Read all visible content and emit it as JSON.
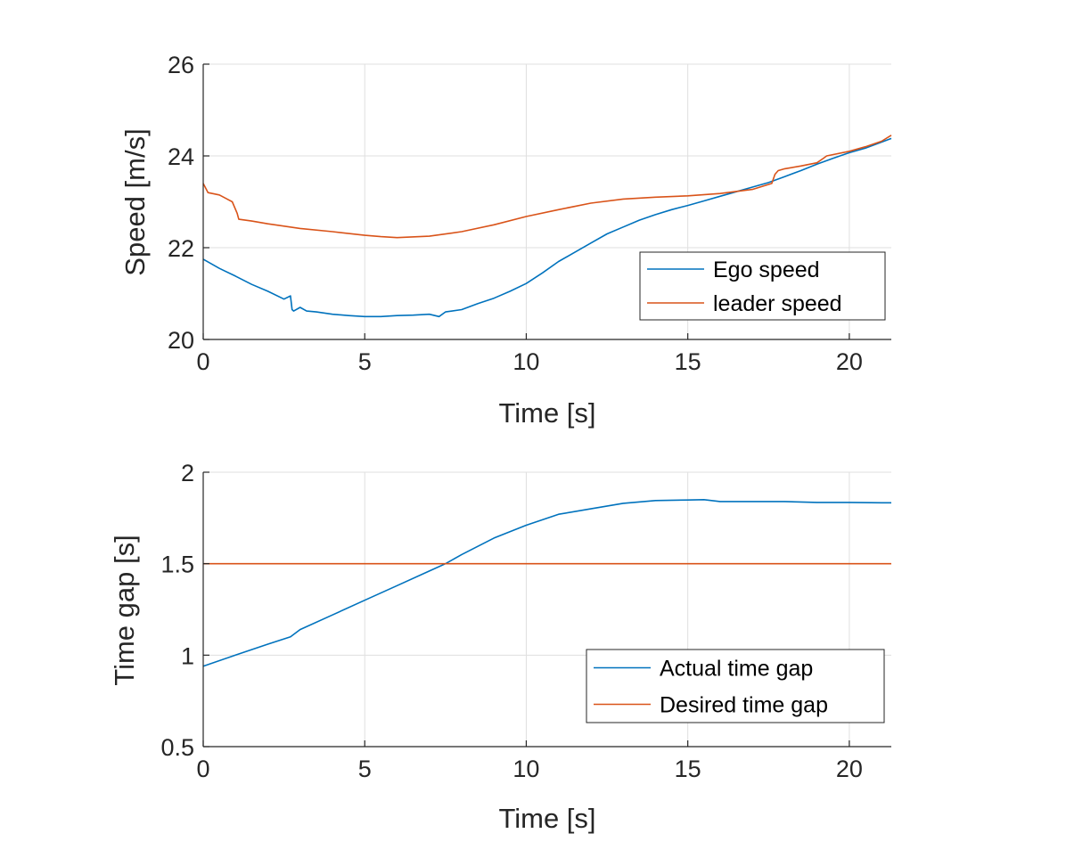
{
  "chart_data": [
    {
      "type": "line",
      "xlabel": "Time [s]",
      "ylabel": "Speed [m/s]",
      "xlim": [
        0,
        21.3
      ],
      "ylim": [
        20,
        26
      ],
      "xticks": [
        0,
        5,
        10,
        15,
        20
      ],
      "yticks": [
        20,
        22,
        24,
        26
      ],
      "grid": true,
      "legend": "bottom-right",
      "series": [
        {
          "name": "Ego speed",
          "color": "#0072BD",
          "x": [
            0,
            0.5,
            1,
            1.5,
            2,
            2.5,
            2.7,
            2.75,
            2.8,
            3.0,
            3.2,
            3.5,
            4,
            4.5,
            5,
            5.5,
            6,
            6.5,
            7,
            7.3,
            7.5,
            8,
            8.5,
            9,
            9.5,
            10,
            10.5,
            11,
            11.5,
            12,
            12.5,
            13,
            13.5,
            14,
            14.5,
            15,
            15.5,
            16,
            16.5,
            17,
            17.5,
            18,
            18.5,
            19,
            19.5,
            20,
            20.5,
            21,
            21.3
          ],
          "y": [
            21.75,
            21.55,
            21.38,
            21.2,
            21.05,
            20.88,
            20.95,
            20.65,
            20.62,
            20.7,
            20.62,
            20.6,
            20.55,
            20.52,
            20.5,
            20.5,
            20.52,
            20.53,
            20.55,
            20.5,
            20.6,
            20.65,
            20.78,
            20.9,
            21.05,
            21.22,
            21.45,
            21.7,
            21.9,
            22.1,
            22.3,
            22.45,
            22.6,
            22.72,
            22.83,
            22.92,
            23.02,
            23.12,
            23.22,
            23.32,
            23.42,
            23.55,
            23.68,
            23.82,
            23.95,
            24.07,
            24.17,
            24.3,
            24.38
          ]
        },
        {
          "name": "leader speed",
          "color": "#D95319",
          "x": [
            0,
            0.15,
            0.5,
            0.9,
            1.05,
            1.1,
            1.5,
            2,
            3,
            4,
            5,
            5.5,
            6,
            7,
            8,
            9,
            10,
            11,
            12,
            13,
            14,
            15,
            16,
            17,
            17.6,
            17.7,
            17.8,
            18,
            18.5,
            19,
            19.2,
            19.3,
            19.5,
            20,
            20.5,
            21,
            21.3
          ],
          "y": [
            23.4,
            23.2,
            23.15,
            23.0,
            22.75,
            22.62,
            22.58,
            22.52,
            22.42,
            22.35,
            22.27,
            22.24,
            22.22,
            22.25,
            22.35,
            22.5,
            22.68,
            22.83,
            22.97,
            23.06,
            23.1,
            23.13,
            23.18,
            23.27,
            23.4,
            23.6,
            23.68,
            23.72,
            23.78,
            23.85,
            23.95,
            24.0,
            24.03,
            24.1,
            24.2,
            24.32,
            24.45
          ]
        }
      ]
    },
    {
      "type": "line",
      "xlabel": "Time [s]",
      "ylabel": "Time gap [s]",
      "xlim": [
        0,
        21.3
      ],
      "ylim": [
        0.5,
        2
      ],
      "xticks": [
        0,
        5,
        10,
        15,
        20
      ],
      "yticks": [
        0.5,
        1,
        1.5,
        2
      ],
      "grid": true,
      "legend": "bottom-right",
      "series": [
        {
          "name": "Actual time gap",
          "color": "#0072BD",
          "x": [
            0,
            1,
            2,
            2.7,
            3,
            4,
            5,
            6,
            7,
            7.5,
            8,
            9,
            10,
            11,
            12,
            13,
            14,
            15,
            15.5,
            16,
            17,
            18,
            19,
            20,
            21,
            21.3
          ],
          "y": [
            0.94,
            1.0,
            1.06,
            1.1,
            1.14,
            1.22,
            1.3,
            1.38,
            1.46,
            1.5,
            1.55,
            1.64,
            1.71,
            1.77,
            1.8,
            1.83,
            1.845,
            1.848,
            1.85,
            1.84,
            1.84,
            1.84,
            1.835,
            1.835,
            1.833,
            1.833
          ]
        },
        {
          "name": "Desired time gap",
          "color": "#D95319",
          "x": [
            0,
            21.3
          ],
          "y": [
            1.5,
            1.5
          ]
        }
      ]
    }
  ]
}
